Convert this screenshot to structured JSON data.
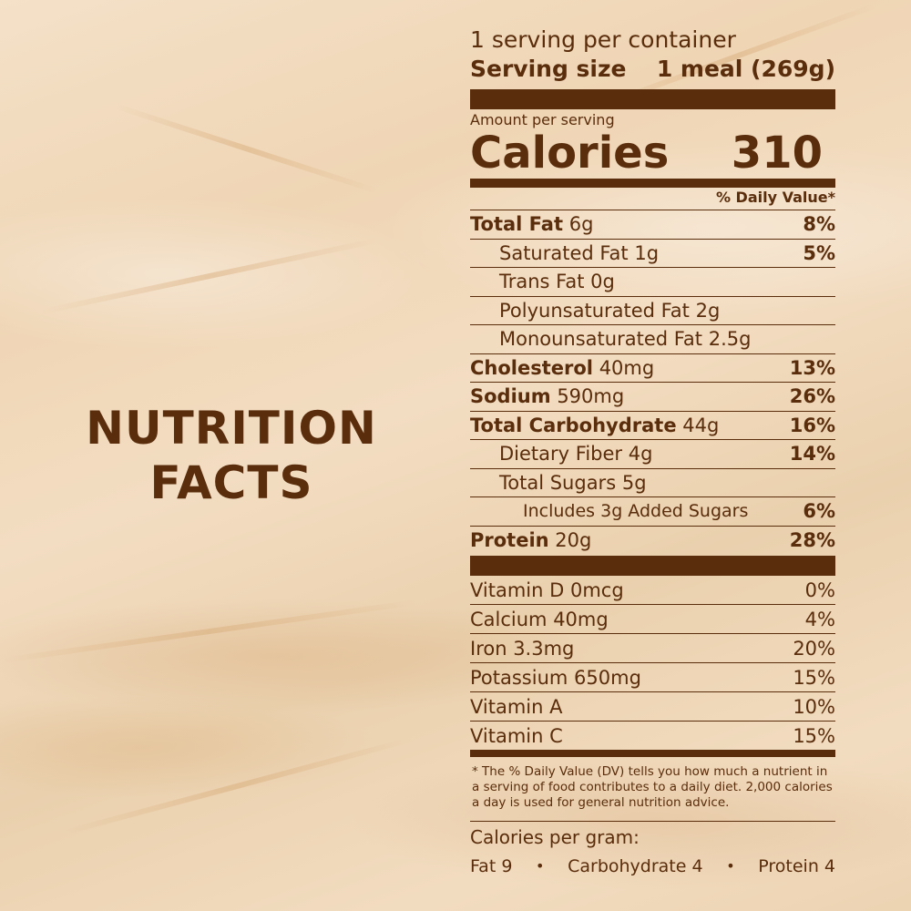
{
  "heading": {
    "line1": "NUTRITION",
    "line2": "FACTS"
  },
  "label": {
    "servings_per_container": "1 serving per container",
    "serving_size_label": "Serving size",
    "serving_size_value": "1 meal (269g)",
    "amount_per_serving": "Amount per serving",
    "calories_label": "Calories",
    "calories_value": "310",
    "daily_value_header": "% Daily Value*",
    "nutrients": [
      {
        "name": "Total Fat",
        "amount": "6g",
        "pct": "8%"
      },
      {
        "name": "Saturated Fat",
        "amount": "1g",
        "pct": "5%"
      },
      {
        "name": "Trans Fat",
        "amount": "0g",
        "pct": ""
      },
      {
        "name": "Polyunsaturated Fat",
        "amount": "2g",
        "pct": ""
      },
      {
        "name": "Monounsaturated Fat",
        "amount": "2.5g",
        "pct": ""
      },
      {
        "name": "Cholesterol",
        "amount": "40mg",
        "pct": "13%"
      },
      {
        "name": "Sodium",
        "amount": "590mg",
        "pct": "26%"
      },
      {
        "name": "Total Carbohydrate",
        "amount": "44g",
        "pct": "16%"
      },
      {
        "name": "Dietary Fiber",
        "amount": "4g",
        "pct": "14%"
      },
      {
        "name": "Total Sugars",
        "amount": "5g",
        "pct": ""
      },
      {
        "name": "Includes 3g Added Sugars",
        "amount": "",
        "pct": "6%"
      },
      {
        "name": "Protein",
        "amount": "20g",
        "pct": "28%"
      }
    ],
    "vitamins": [
      {
        "name": "Vitamin D 0mcg",
        "pct": "0%"
      },
      {
        "name": "Calcium 40mg",
        "pct": "4%"
      },
      {
        "name": "Iron 3.3mg",
        "pct": "20%"
      },
      {
        "name": "Potassium 650mg",
        "pct": "15%"
      },
      {
        "name": "Vitamin A",
        "pct": "10%"
      },
      {
        "name": "Vitamin C",
        "pct": "15%"
      }
    ],
    "footnote": "* The % Daily Value (DV) tells you how much a nutrient in a serving of food contributes to a daily diet. 2,000 calories a day is used for general nutrition advice.",
    "calories_per_gram_title": "Calories per gram:",
    "calories_per_gram": {
      "fat": "Fat 9",
      "carbohydrate": "Carbohydrate 4",
      "protein": "Protein 4",
      "separator": "•"
    }
  },
  "colors": {
    "text": "#5a2d0c",
    "background": "#f0d9bb"
  }
}
